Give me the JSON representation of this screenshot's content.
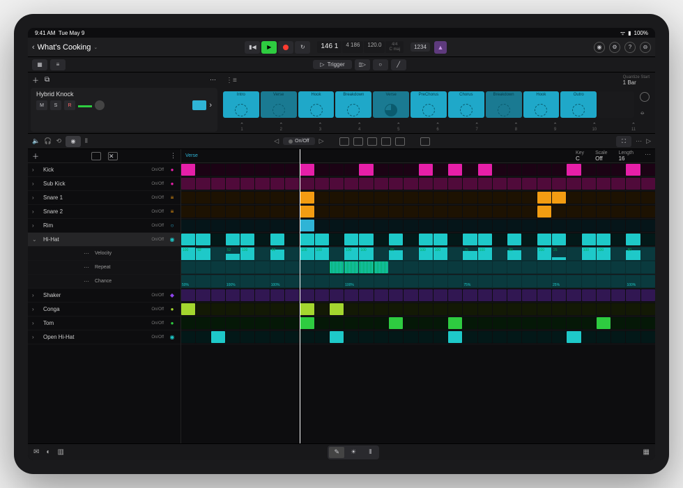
{
  "status": {
    "time": "9:41 AM",
    "date": "Tue May 9",
    "battery": "100%"
  },
  "header": {
    "title": "What's Cooking",
    "lcd": {
      "bars": "146 1",
      "beats": "4 186",
      "tempo": "120.0",
      "sig": "4/4",
      "key": "C maj"
    },
    "count": "1234"
  },
  "trigger_label": "Trigger",
  "quantize": {
    "label": "Quantize Start",
    "value": "1 Bar"
  },
  "track": {
    "name": "Hybrid Knock",
    "m": "M",
    "s": "S",
    "r": "R"
  },
  "scenes": [
    {
      "name": "Intro"
    },
    {
      "name": "Verse"
    },
    {
      "name": "Hook"
    },
    {
      "name": "Breakdown"
    },
    {
      "name": "Verse",
      "active": true
    },
    {
      "name": "PreChorus"
    },
    {
      "name": "Chorus"
    },
    {
      "name": "Breakdown"
    },
    {
      "name": "Hook"
    },
    {
      "name": "Outro"
    }
  ],
  "scene_nums": [
    "1",
    "2",
    "3",
    "4",
    "5",
    "6",
    "7",
    "8",
    "9",
    "10",
    "11"
  ],
  "onoff_label": "On/Off",
  "pattern": {
    "name": "Verse",
    "key": {
      "label": "Key",
      "value": "C"
    },
    "scale": {
      "label": "Scale",
      "value": "Off"
    },
    "length": {
      "label": "Length",
      "value": "16"
    }
  },
  "drums": [
    {
      "name": "Kick",
      "color": "#e61fa8",
      "icon": "●",
      "steps": [
        1,
        0,
        0,
        0,
        0,
        0,
        0,
        0,
        1,
        0,
        0,
        0,
        1,
        0,
        0,
        0,
        1,
        0,
        1,
        0,
        1,
        0,
        0,
        0,
        0,
        0,
        1,
        0,
        0,
        0,
        1,
        0
      ]
    },
    {
      "name": "Sub Kick",
      "color": "#e61fa8",
      "icon": "●",
      "steps": [
        1,
        1,
        1,
        1,
        1,
        1,
        1,
        1,
        1,
        1,
        1,
        1,
        1,
        1,
        1,
        1,
        1,
        1,
        1,
        1,
        1,
        1,
        1,
        1,
        1,
        1,
        1,
        1,
        1,
        1,
        1,
        1
      ],
      "dim": true
    },
    {
      "name": "Snare 1",
      "color": "#f39c12",
      "icon": "≡",
      "steps": [
        0,
        0,
        0,
        0,
        0,
        0,
        0,
        0,
        1,
        0,
        0,
        0,
        0,
        0,
        0,
        0,
        0,
        0,
        0,
        0,
        0,
        0,
        0,
        0,
        1,
        1,
        0,
        0,
        0,
        0,
        0,
        0
      ]
    },
    {
      "name": "Snare 2",
      "color": "#f39c12",
      "icon": "≡",
      "steps": [
        0,
        0,
        0,
        0,
        0,
        0,
        0,
        0,
        1,
        0,
        0,
        0,
        0,
        0,
        0,
        0,
        0,
        0,
        0,
        0,
        0,
        0,
        0,
        0,
        1,
        0,
        0,
        0,
        0,
        0,
        0,
        0
      ]
    },
    {
      "name": "Rim",
      "color": "#2fb4d6",
      "icon": "○",
      "steps": [
        0,
        0,
        0,
        0,
        0,
        0,
        0,
        0,
        1,
        0,
        0,
        0,
        0,
        0,
        0,
        0,
        0,
        0,
        0,
        0,
        0,
        0,
        0,
        0,
        0,
        0,
        0,
        0,
        0,
        0,
        0,
        0
      ]
    },
    {
      "name": "Hi-Hat",
      "color": "#1ec9c9",
      "icon": "◉",
      "expanded": true,
      "selected": true,
      "steps": [
        1,
        1,
        0,
        1,
        1,
        0,
        1,
        0,
        1,
        1,
        0,
        1,
        1,
        0,
        1,
        0,
        1,
        1,
        0,
        1,
        1,
        0,
        1,
        0,
        1,
        1,
        0,
        1,
        1,
        0,
        1,
        0
      ]
    },
    {
      "name": "Shaker",
      "color": "#8e44ec",
      "icon": "◆",
      "steps": [
        1,
        1,
        1,
        1,
        1,
        1,
        1,
        1,
        1,
        1,
        1,
        1,
        1,
        1,
        1,
        1,
        1,
        1,
        1,
        1,
        1,
        1,
        1,
        1,
        1,
        1,
        1,
        1,
        1,
        1,
        1,
        1
      ],
      "dim": true
    },
    {
      "name": "Conga",
      "color": "#a4d62f",
      "icon": "●",
      "steps": [
        1,
        0,
        0,
        0,
        0,
        0,
        0,
        0,
        1,
        0,
        1,
        0,
        0,
        0,
        0,
        0,
        0,
        0,
        0,
        0,
        0,
        0,
        0,
        0,
        0,
        0,
        0,
        0,
        0,
        0,
        0,
        0
      ]
    },
    {
      "name": "Tom",
      "color": "#2ecc40",
      "icon": "●",
      "steps": [
        0,
        0,
        0,
        0,
        0,
        0,
        0,
        0,
        1,
        0,
        0,
        0,
        0,
        0,
        1,
        0,
        0,
        0,
        1,
        0,
        0,
        0,
        0,
        0,
        0,
        0,
        0,
        0,
        1,
        0,
        0,
        0
      ]
    },
    {
      "name": "Open Hi-Hat",
      "color": "#1ec9c9",
      "icon": "◉",
      "steps": [
        0,
        0,
        1,
        0,
        0,
        0,
        0,
        0,
        0,
        0,
        1,
        0,
        0,
        0,
        0,
        0,
        0,
        0,
        1,
        0,
        0,
        0,
        0,
        0,
        0,
        0,
        1,
        0,
        0,
        0,
        0,
        0
      ]
    }
  ],
  "sub_rows": [
    {
      "label": "Velocity",
      "type": "vel",
      "values": [
        100,
        92,
        0,
        52,
        100,
        0,
        82,
        0,
        100,
        100,
        0,
        100,
        100,
        0,
        80,
        0,
        100,
        100,
        0,
        75,
        100,
        0,
        80,
        0,
        100,
        25,
        0,
        100,
        100,
        0,
        80,
        0
      ]
    },
    {
      "label": "Repeat",
      "type": "rep"
    },
    {
      "label": "Chance",
      "type": "chance",
      "values": [
        "50%",
        "",
        "",
        "100%",
        "",
        "",
        "100%",
        "",
        "",
        "",
        "",
        "100%",
        "",
        "",
        "",
        "",
        "",
        "",
        "",
        "75%",
        "",
        "",
        "",
        "",
        "",
        "25%",
        "",
        "",
        "",
        "",
        "100%",
        ""
      ]
    }
  ],
  "colors": {
    "bg_dark": "#0d0d0f",
    "panel": "#1a1a1c",
    "cell_cyan": "#1fa8c9",
    "step_bg": "#1a1a1c",
    "step_bg_alt": "#222224"
  }
}
